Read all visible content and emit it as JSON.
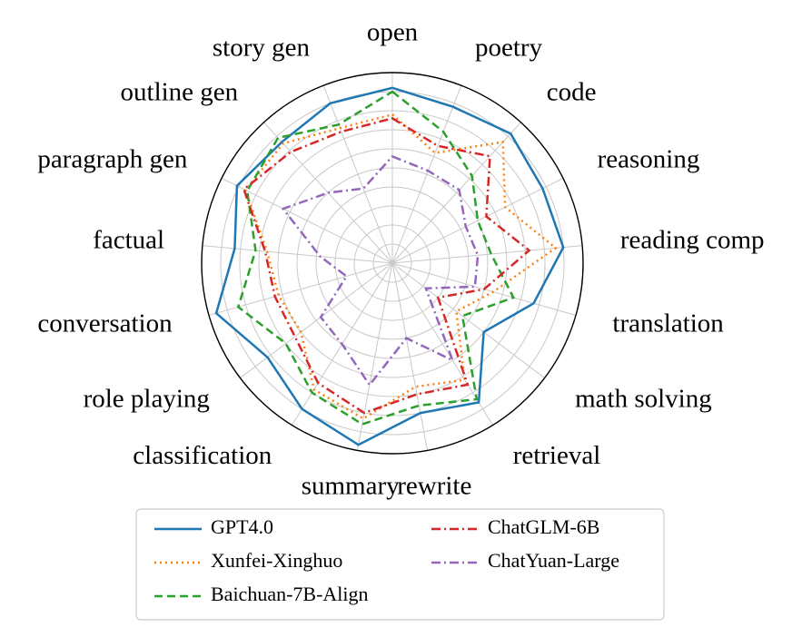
{
  "chart_data": {
    "type": "radar",
    "categories": [
      "open",
      "poetry",
      "code",
      "reasoning",
      "reading comp",
      "translation",
      "math solving",
      "retrieval",
      "rewrite",
      "summary",
      "classification",
      "role playing",
      "conversation",
      "factual",
      "paragraph gen",
      "outline gen",
      "story gen"
    ],
    "rmax": 1.0,
    "rgrid": [
      0.1,
      0.2,
      0.3,
      0.4,
      0.5,
      0.6,
      0.7,
      0.8,
      0.9
    ],
    "grid": true,
    "legend_position": "bottom",
    "series": [
      {
        "name": "GPT4.0",
        "color": "#1f77b4",
        "style": "solid",
        "values": [
          0.92,
          0.88,
          0.92,
          0.88,
          0.9,
          0.77,
          0.6,
          0.86,
          0.8,
          0.97,
          0.9,
          0.82,
          0.96,
          0.83,
          0.91,
          0.86,
          0.9
        ]
      },
      {
        "name": "Xunfei-Xinghuo",
        "color": "#ff7f0e",
        "style": "dotted",
        "values": [
          0.78,
          0.62,
          0.86,
          0.66,
          0.86,
          0.55,
          0.42,
          0.72,
          0.66,
          0.83,
          0.78,
          0.6,
          0.62,
          0.66,
          0.86,
          0.85,
          0.76
        ]
      },
      {
        "name": "Baichuan-7B-Align",
        "color": "#2ca02c",
        "style": "dashed",
        "values": [
          0.9,
          0.74,
          0.62,
          0.5,
          0.52,
          0.66,
          0.46,
          0.84,
          0.76,
          0.86,
          0.8,
          0.7,
          0.84,
          0.72,
          0.85,
          0.89,
          0.78
        ]
      },
      {
        "name": "ChatGLM-6B",
        "color": "#d62728",
        "style": "dashdot",
        "values": [
          0.76,
          0.66,
          0.76,
          0.55,
          0.72,
          0.5,
          0.3,
          0.75,
          0.7,
          0.8,
          0.74,
          0.64,
          0.64,
          0.67,
          0.87,
          0.79,
          0.74
        ]
      },
      {
        "name": "ChatYuan-Large",
        "color": "#9467bd",
        "style": "dashdot",
        "values": [
          0.56,
          0.52,
          0.52,
          0.43,
          0.45,
          0.45,
          0.22,
          0.6,
          0.4,
          0.65,
          0.5,
          0.47,
          0.25,
          0.38,
          0.64,
          0.5,
          0.42
        ]
      }
    ]
  }
}
